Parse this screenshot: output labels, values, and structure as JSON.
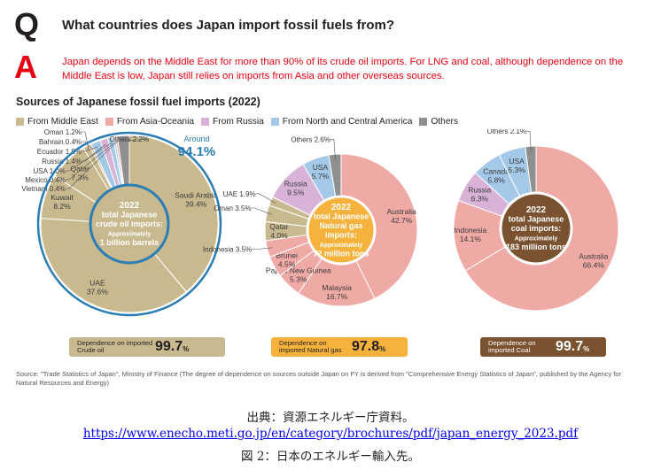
{
  "header": {
    "q_letter": "Q",
    "a_letter": "A",
    "question": "What countries does Japan import fossil fuels from?",
    "answer": "Japan depends on the Middle East for more than 90% of its crude oil imports. For LNG and coal, although dependence on the Middle East is low, Japan still relies on imports from Asia and other overseas sources."
  },
  "subtitle": "Sources of Japanese fossil fuel imports (2022)",
  "legend": [
    {
      "label": "From Middle East",
      "color": "#c8b98f"
    },
    {
      "label": "From Asia-Oceania",
      "color": "#f0aaa6"
    },
    {
      "label": "From Russia",
      "color": "#d9b2d8"
    },
    {
      "label": "From North and Central America",
      "color": "#a4c9e8"
    },
    {
      "label": "Others",
      "color": "#8f8f8f"
    }
  ],
  "chart_data": [
    {
      "type": "pie",
      "center": [
        "2022",
        "total Japanese",
        "crude oil imports:",
        "Approximately",
        "1 billion barrels"
      ],
      "callout": {
        "prefix": "Around",
        "value": "94.1%"
      },
      "slices": [
        {
          "name": "Saudi Arabia",
          "value": 39.4,
          "label": "39.4%",
          "group": "From Middle East"
        },
        {
          "name": "UAE",
          "value": 37.6,
          "label": "37.6%",
          "group": "From Middle East"
        },
        {
          "name": "Kuwait",
          "value": 8.2,
          "label": "8.2%",
          "group": "From Middle East"
        },
        {
          "name": "Qatar",
          "value": 7.3,
          "label": "7.3%",
          "group": "From Middle East"
        },
        {
          "name": "Oman",
          "value": 1.2,
          "label": "1.2%",
          "group": "From Middle East"
        },
        {
          "name": "Bahrain",
          "value": 0.4,
          "label": "0.4%",
          "group": "From Middle East"
        },
        {
          "name": "Ecuador",
          "value": 1.8,
          "label": "1.8%",
          "group": "From North and Central America"
        },
        {
          "name": "Russia",
          "value": 1.4,
          "label": "1.4%",
          "group": "From Russia"
        },
        {
          "name": "USA",
          "value": 1.0,
          "label": "1.0%",
          "group": "From North and Central America"
        },
        {
          "name": "Mexico",
          "value": 0.4,
          "label": "0.4%",
          "group": "From North and Central America"
        },
        {
          "name": "Vietnam",
          "value": 0.4,
          "label": "0.4%",
          "group": "From Asia-Oceania"
        },
        {
          "name": "Others",
          "value": 2.2,
          "label": "2.2%",
          "group": "Others"
        }
      ],
      "dependence": {
        "label": "Dependence on imported Crude oil",
        "value": "99.7",
        "unit": "%"
      }
    },
    {
      "type": "pie",
      "center": [
        "2022",
        "total Japanese",
        "Natural gas",
        "imports:",
        "Approximately",
        "72 million tons"
      ],
      "slices": [
        {
          "name": "Australia",
          "value": 42.7,
          "label": "42.7%",
          "group": "From Asia-Oceania"
        },
        {
          "name": "Malaysia",
          "value": 16.7,
          "label": "16.7%",
          "group": "From Asia-Oceania"
        },
        {
          "name": "Papua New Guinea",
          "value": 5.3,
          "label": "5.3%",
          "group": "From Asia-Oceania"
        },
        {
          "name": "Brunei",
          "value": 4.5,
          "label": "4.5%",
          "group": "From Asia-Oceania"
        },
        {
          "name": "Indonesia",
          "value": 3.5,
          "label": "3.5%",
          "group": "From Asia-Oceania"
        },
        {
          "name": "Qatar",
          "value": 4.0,
          "label": "4.0%",
          "group": "From Middle East"
        },
        {
          "name": "Oman",
          "value": 3.5,
          "label": "3.5%",
          "group": "From Middle East"
        },
        {
          "name": "UAE",
          "value": 1.9,
          "label": "1.9%",
          "group": "From Middle East"
        },
        {
          "name": "Russia",
          "value": 9.5,
          "label": "9.5%",
          "group": "From Russia"
        },
        {
          "name": "USA",
          "value": 5.7,
          "label": "5.7%",
          "group": "From North and Central America"
        },
        {
          "name": "Others",
          "value": 2.6,
          "label": "2.6%",
          "group": "Others"
        }
      ],
      "dependence": {
        "label": "Dependence on imported Natural gas",
        "value": "97.8",
        "unit": "%"
      }
    },
    {
      "type": "pie",
      "center": [
        "2022",
        "total Japanese",
        "coal imports:",
        "Approximately",
        "183 million tons"
      ],
      "slices": [
        {
          "name": "Australia",
          "value": 66.4,
          "label": "66.4%",
          "group": "From Asia-Oceania"
        },
        {
          "name": "Indonesia",
          "value": 14.1,
          "label": "14.1%",
          "group": "From Asia-Oceania"
        },
        {
          "name": "Russia",
          "value": 6.3,
          "label": "6.3%",
          "group": "From Russia"
        },
        {
          "name": "Canada",
          "value": 5.8,
          "label": "5.8%",
          "group": "From North and Central America"
        },
        {
          "name": "USA",
          "value": 5.3,
          "label": "5.3%",
          "group": "From North and Central America"
        },
        {
          "name": "Others",
          "value": 2.1,
          "label": "2.1%",
          "group": "Others"
        }
      ],
      "dependence": {
        "label": "Dependence on imported Coal",
        "value": "99.7",
        "unit": "%"
      }
    }
  ],
  "source_note": "Source: \"Trade Statistics of Japan\", Ministry of Finance (The degree of dependence on sources outside Japan on FY is derived from \"Comprehensive Energy Statistics of Japan\", published by the Agency for Natural Resources and Energy)",
  "caption": {
    "line1": "出典：資源エネルギー庁資料。",
    "url": "https://www.enecho.meti.go.jp/en/category/brochures/pdf/japan_energy_2023.pdf",
    "line3": "図 2：日本のエネルギー輸入先。"
  }
}
